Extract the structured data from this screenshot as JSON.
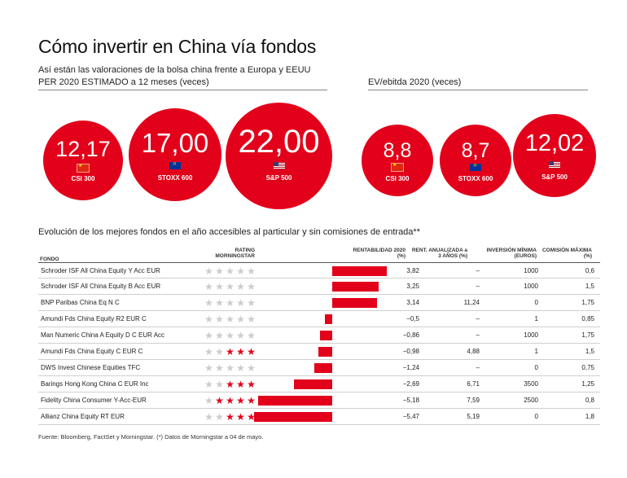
{
  "title": "Cómo invertir en China vía fondos",
  "subtitle": "Así están las valoraciones de la bolsa china frente a Europa y EEUU",
  "per_section_label": "PER 2020 ESTIMADO a 12 meses (veces)",
  "ev_section_label": "EV/ebitda 2020 (veces)",
  "per_bubbles": [
    {
      "value": "12,17",
      "label": "CSI 300",
      "flag": "china-flag-icon"
    },
    {
      "value": "17,00",
      "label": "STOXX 600",
      "flag": "eu-flag-icon"
    },
    {
      "value": "22,00",
      "label": "S&P 500",
      "flag": "us-flag-icon"
    }
  ],
  "ev_bubbles": [
    {
      "value": "8,8",
      "label": "CSI 300",
      "flag": "china-flag-icon"
    },
    {
      "value": "8,7",
      "label": "STOXX 600",
      "flag": "eu-flag-icon"
    },
    {
      "value": "12,02",
      "label": "S&P 500",
      "flag": "us-flag-icon"
    }
  ],
  "table_title": "Evolución de los mejores fondos en el año accesibles al particular y sin comisiones de entrada**",
  "headers": {
    "fondo": "FONDO",
    "rating": "RATING MORNINGSTAR",
    "rentabilidad": "RENTABILIDAD 2020 (%)",
    "rent_anualizada": "RENT. ANUALIZADA a 3 AÑOS (%)",
    "inversion": "INVERSIÓN MÍNIMA (EUROS)",
    "comision": "COMISIÓN MÁXIMA (%)"
  },
  "colors": {
    "accent": "#e2001a",
    "star_off": "#cccccc"
  },
  "chart_data": {
    "type": "bar",
    "orientation": "horizontal",
    "title": "Evolución de los mejores fondos en el año accesibles al particular y sin comisiones de entrada**",
    "categories": [
      "Schroder ISF All China Equity Y Acc EUR",
      "Schroder ISF All China Equity B Acc EUR",
      "BNP Paribas China Eq N C",
      "Amundi Fds China Equity R2 EUR C",
      "Man Numeric China A Equity D C EUR Acc",
      "Amundi Fds China Equity C EUR C",
      "DWS Invest Chinese Equities TFC",
      "Barings Hong Kong China C EUR Inc",
      "Fidelity China Consumer Y-Acc-EUR",
      "Allianz China Equity RT EUR"
    ],
    "values": [
      3.82,
      3.25,
      3.14,
      -0.5,
      -0.86,
      -0.98,
      -1.24,
      -2.69,
      -5.18,
      -5.47
    ],
    "xlim": [
      -6,
      6
    ]
  },
  "rows": [
    {
      "name": "Schroder ISF All China Equity Y Acc EUR",
      "stars": 0,
      "ret": "3,82",
      "ann": "–",
      "min": "1000",
      "fee": "0,6"
    },
    {
      "name": "Schroder ISF All China Equity B Acc EUR",
      "stars": 0,
      "ret": "3,25",
      "ann": "–",
      "min": "1000",
      "fee": "1,5"
    },
    {
      "name": "BNP Paribas China Eq N C",
      "stars": 0,
      "ret": "3,14",
      "ann": "11,24",
      "min": "0",
      "fee": "1,75"
    },
    {
      "name": "Amundi Fds China Equity R2 EUR C",
      "stars": 0,
      "ret": "−0,5",
      "ann": "–",
      "min": "1",
      "fee": "0,85"
    },
    {
      "name": "Man Numeric China A Equity D C EUR Acc",
      "stars": 0,
      "ret": "−0,86",
      "ann": "–",
      "min": "1000",
      "fee": "1,75"
    },
    {
      "name": "Amundi Fds China Equity C EUR C",
      "stars": 3,
      "ret": "−0,98",
      "ann": "4,88",
      "min": "1",
      "fee": "1,5"
    },
    {
      "name": "DWS Invest Chinese Equities TFC",
      "stars": 0,
      "ret": "−1,24",
      "ann": "–",
      "min": "0",
      "fee": "0,75"
    },
    {
      "name": "Barings Hong Kong China C EUR Inc",
      "stars": 3,
      "ret": "−2,69",
      "ann": "6,71",
      "min": "3500",
      "fee": "1,25"
    },
    {
      "name": "Fidelity China Consumer Y-Acc-EUR",
      "stars": 4,
      "ret": "−5,18",
      "ann": "7,59",
      "min": "2500",
      "fee": "0,8"
    },
    {
      "name": "Allianz China Equity RT EUR",
      "stars": 3,
      "ret": "−5,47",
      "ann": "5,19",
      "min": "0",
      "fee": "1,8"
    }
  ],
  "source": "Fuente: Bloomberg, FactSet y Morningstar. (*) Datos de Morningstar a 04 de mayo."
}
